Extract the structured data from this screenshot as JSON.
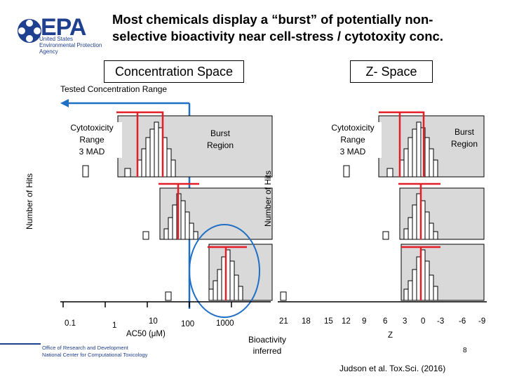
{
  "header": {
    "logo_text": "EPA",
    "agency_lines": [
      "United States",
      "Environmental Protection",
      "Agency"
    ],
    "title_lines": [
      "Most chemicals display a “burst” of potentially non-",
      "selective bioactivity near cell-stress / cytotoxity conc."
    ]
  },
  "labels": {
    "concentration_space": "Concentration Space",
    "z_space": "Z- Space",
    "tested_range": "Tested Concentration Range",
    "left_ylabel": "Number of Hits",
    "right_ylabel": "Number of Hits",
    "cyto_left": [
      "Cytotoxicity",
      "Range",
      "3 MAD"
    ],
    "burst_left": [
      "Burst",
      "Region"
    ],
    "cyto_right": [
      "Cytotoxicity",
      "Range",
      "3 MAD"
    ],
    "burst_right": [
      "Burst",
      "Region"
    ],
    "bioactivity": [
      "Bioactivity",
      "inferred"
    ]
  },
  "axes": {
    "left_ticks": [
      "0.1",
      "1",
      "10",
      "100",
      "1000"
    ],
    "left_xlabel": "AC50 (μM)",
    "right_ticks": [
      "21",
      "18",
      "15",
      "12",
      "9",
      "6",
      "3",
      "0",
      "-3",
      "-6",
      "-9"
    ],
    "right_xlabel": "Z"
  },
  "footer": {
    "office_lines": [
      "Office of Research and Development",
      "National Center for Computational Toxicology"
    ],
    "page_number": "8",
    "citation": "Judson et al. Tox.Sci. (2016)"
  },
  "colors": {
    "epa_blue": "#1f3f8f",
    "panel_fill": "#d9d9d9",
    "red_marker": "#e41e26",
    "blue_arrow": "#1f6fc5"
  }
}
